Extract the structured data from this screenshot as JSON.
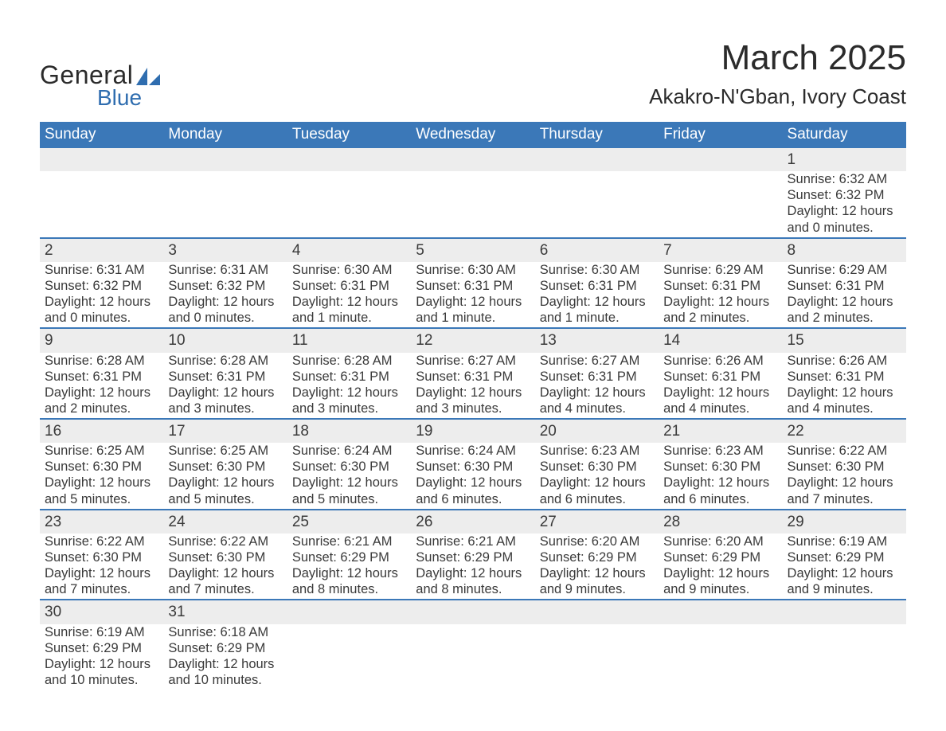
{
  "colors": {
    "header_bg": "#3b78b8",
    "header_text": "#ffffff",
    "daynum_bg": "#ededed",
    "row_divider": "#3b78b8",
    "body_text": "#3a3a3a",
    "logo_blue": "#2f6daf",
    "page_bg": "#ffffff"
  },
  "typography": {
    "month_title_pt": 44,
    "location_pt": 26,
    "weekday_header_pt": 19,
    "daynum_pt": 19,
    "cell_pt": 16.5,
    "font_family": "Arial"
  },
  "logo": {
    "line1": "General",
    "line2": "Blue"
  },
  "title": {
    "month": "March 2025",
    "location": "Akakro-N'Gban, Ivory Coast"
  },
  "weekdays": [
    "Sunday",
    "Monday",
    "Tuesday",
    "Wednesday",
    "Thursday",
    "Friday",
    "Saturday"
  ],
  "weeks": [
    [
      null,
      null,
      null,
      null,
      null,
      null,
      {
        "d": "1",
        "sr": "Sunrise: 6:32 AM",
        "ss": "Sunset: 6:32 PM",
        "dl1": "Daylight: 12 hours",
        "dl2": "and 0 minutes."
      }
    ],
    [
      {
        "d": "2",
        "sr": "Sunrise: 6:31 AM",
        "ss": "Sunset: 6:32 PM",
        "dl1": "Daylight: 12 hours",
        "dl2": "and 0 minutes."
      },
      {
        "d": "3",
        "sr": "Sunrise: 6:31 AM",
        "ss": "Sunset: 6:32 PM",
        "dl1": "Daylight: 12 hours",
        "dl2": "and 0 minutes."
      },
      {
        "d": "4",
        "sr": "Sunrise: 6:30 AM",
        "ss": "Sunset: 6:31 PM",
        "dl1": "Daylight: 12 hours",
        "dl2": "and 1 minute."
      },
      {
        "d": "5",
        "sr": "Sunrise: 6:30 AM",
        "ss": "Sunset: 6:31 PM",
        "dl1": "Daylight: 12 hours",
        "dl2": "and 1 minute."
      },
      {
        "d": "6",
        "sr": "Sunrise: 6:30 AM",
        "ss": "Sunset: 6:31 PM",
        "dl1": "Daylight: 12 hours",
        "dl2": "and 1 minute."
      },
      {
        "d": "7",
        "sr": "Sunrise: 6:29 AM",
        "ss": "Sunset: 6:31 PM",
        "dl1": "Daylight: 12 hours",
        "dl2": "and 2 minutes."
      },
      {
        "d": "8",
        "sr": "Sunrise: 6:29 AM",
        "ss": "Sunset: 6:31 PM",
        "dl1": "Daylight: 12 hours",
        "dl2": "and 2 minutes."
      }
    ],
    [
      {
        "d": "9",
        "sr": "Sunrise: 6:28 AM",
        "ss": "Sunset: 6:31 PM",
        "dl1": "Daylight: 12 hours",
        "dl2": "and 2 minutes."
      },
      {
        "d": "10",
        "sr": "Sunrise: 6:28 AM",
        "ss": "Sunset: 6:31 PM",
        "dl1": "Daylight: 12 hours",
        "dl2": "and 3 minutes."
      },
      {
        "d": "11",
        "sr": "Sunrise: 6:28 AM",
        "ss": "Sunset: 6:31 PM",
        "dl1": "Daylight: 12 hours",
        "dl2": "and 3 minutes."
      },
      {
        "d": "12",
        "sr": "Sunrise: 6:27 AM",
        "ss": "Sunset: 6:31 PM",
        "dl1": "Daylight: 12 hours",
        "dl2": "and 3 minutes."
      },
      {
        "d": "13",
        "sr": "Sunrise: 6:27 AM",
        "ss": "Sunset: 6:31 PM",
        "dl1": "Daylight: 12 hours",
        "dl2": "and 4 minutes."
      },
      {
        "d": "14",
        "sr": "Sunrise: 6:26 AM",
        "ss": "Sunset: 6:31 PM",
        "dl1": "Daylight: 12 hours",
        "dl2": "and 4 minutes."
      },
      {
        "d": "15",
        "sr": "Sunrise: 6:26 AM",
        "ss": "Sunset: 6:31 PM",
        "dl1": "Daylight: 12 hours",
        "dl2": "and 4 minutes."
      }
    ],
    [
      {
        "d": "16",
        "sr": "Sunrise: 6:25 AM",
        "ss": "Sunset: 6:30 PM",
        "dl1": "Daylight: 12 hours",
        "dl2": "and 5 minutes."
      },
      {
        "d": "17",
        "sr": "Sunrise: 6:25 AM",
        "ss": "Sunset: 6:30 PM",
        "dl1": "Daylight: 12 hours",
        "dl2": "and 5 minutes."
      },
      {
        "d": "18",
        "sr": "Sunrise: 6:24 AM",
        "ss": "Sunset: 6:30 PM",
        "dl1": "Daylight: 12 hours",
        "dl2": "and 5 minutes."
      },
      {
        "d": "19",
        "sr": "Sunrise: 6:24 AM",
        "ss": "Sunset: 6:30 PM",
        "dl1": "Daylight: 12 hours",
        "dl2": "and 6 minutes."
      },
      {
        "d": "20",
        "sr": "Sunrise: 6:23 AM",
        "ss": "Sunset: 6:30 PM",
        "dl1": "Daylight: 12 hours",
        "dl2": "and 6 minutes."
      },
      {
        "d": "21",
        "sr": "Sunrise: 6:23 AM",
        "ss": "Sunset: 6:30 PM",
        "dl1": "Daylight: 12 hours",
        "dl2": "and 6 minutes."
      },
      {
        "d": "22",
        "sr": "Sunrise: 6:22 AM",
        "ss": "Sunset: 6:30 PM",
        "dl1": "Daylight: 12 hours",
        "dl2": "and 7 minutes."
      }
    ],
    [
      {
        "d": "23",
        "sr": "Sunrise: 6:22 AM",
        "ss": "Sunset: 6:30 PM",
        "dl1": "Daylight: 12 hours",
        "dl2": "and 7 minutes."
      },
      {
        "d": "24",
        "sr": "Sunrise: 6:22 AM",
        "ss": "Sunset: 6:30 PM",
        "dl1": "Daylight: 12 hours",
        "dl2": "and 7 minutes."
      },
      {
        "d": "25",
        "sr": "Sunrise: 6:21 AM",
        "ss": "Sunset: 6:29 PM",
        "dl1": "Daylight: 12 hours",
        "dl2": "and 8 minutes."
      },
      {
        "d": "26",
        "sr": "Sunrise: 6:21 AM",
        "ss": "Sunset: 6:29 PM",
        "dl1": "Daylight: 12 hours",
        "dl2": "and 8 minutes."
      },
      {
        "d": "27",
        "sr": "Sunrise: 6:20 AM",
        "ss": "Sunset: 6:29 PM",
        "dl1": "Daylight: 12 hours",
        "dl2": "and 9 minutes."
      },
      {
        "d": "28",
        "sr": "Sunrise: 6:20 AM",
        "ss": "Sunset: 6:29 PM",
        "dl1": "Daylight: 12 hours",
        "dl2": "and 9 minutes."
      },
      {
        "d": "29",
        "sr": "Sunrise: 6:19 AM",
        "ss": "Sunset: 6:29 PM",
        "dl1": "Daylight: 12 hours",
        "dl2": "and 9 minutes."
      }
    ],
    [
      {
        "d": "30",
        "sr": "Sunrise: 6:19 AM",
        "ss": "Sunset: 6:29 PM",
        "dl1": "Daylight: 12 hours",
        "dl2": "and 10 minutes."
      },
      {
        "d": "31",
        "sr": "Sunrise: 6:18 AM",
        "ss": "Sunset: 6:29 PM",
        "dl1": "Daylight: 12 hours",
        "dl2": "and 10 minutes."
      },
      null,
      null,
      null,
      null,
      null
    ]
  ]
}
